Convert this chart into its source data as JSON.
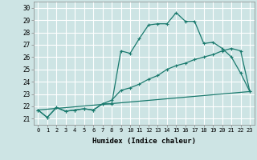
{
  "xlabel": "Humidex (Indice chaleur)",
  "background_color": "#cde4e4",
  "grid_color": "#ffffff",
  "line_color": "#1a7a6e",
  "xlim": [
    -0.5,
    23.5
  ],
  "ylim": [
    20.5,
    30.5
  ],
  "xticks": [
    0,
    1,
    2,
    3,
    4,
    5,
    6,
    7,
    8,
    9,
    10,
    11,
    12,
    13,
    14,
    15,
    16,
    17,
    18,
    19,
    20,
    21,
    22,
    23
  ],
  "yticks": [
    21,
    22,
    23,
    24,
    25,
    26,
    27,
    28,
    29,
    30
  ],
  "series1_x": [
    0,
    1,
    2,
    3,
    4,
    5,
    6,
    7,
    8,
    9,
    10,
    11,
    12,
    13,
    14,
    15,
    16,
    17,
    18,
    19,
    20,
    21,
    22,
    23
  ],
  "series1_y": [
    21.7,
    21.1,
    21.9,
    21.6,
    21.7,
    21.8,
    21.7,
    22.2,
    22.2,
    26.5,
    26.3,
    27.5,
    28.6,
    28.7,
    28.7,
    29.6,
    28.9,
    28.9,
    27.1,
    27.2,
    26.7,
    26.0,
    24.7,
    23.2
  ],
  "series2_x": [
    0,
    1,
    2,
    3,
    4,
    5,
    6,
    7,
    8,
    9,
    10,
    11,
    12,
    13,
    14,
    15,
    16,
    17,
    18,
    19,
    20,
    21,
    22,
    23
  ],
  "series2_y": [
    21.7,
    21.1,
    21.9,
    21.6,
    21.7,
    21.8,
    21.7,
    22.2,
    22.5,
    23.3,
    23.5,
    23.8,
    24.2,
    24.5,
    25.0,
    25.3,
    25.5,
    25.8,
    26.0,
    26.2,
    26.5,
    26.7,
    26.5,
    23.2
  ],
  "series3_x": [
    0,
    23
  ],
  "series3_y": [
    21.7,
    23.2
  ]
}
